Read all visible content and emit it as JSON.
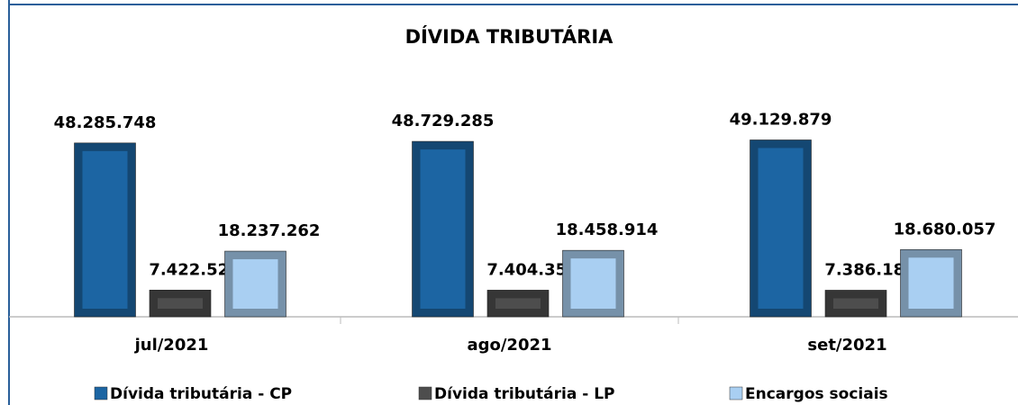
{
  "chart_data": {
    "type": "bar",
    "title": "DÍVIDA TRIBUTÁRIA",
    "categories": [
      "jul/2021",
      "ago/2021",
      "set/2021"
    ],
    "series": [
      {
        "name": "Dívida tributária - CP",
        "color": "#1c65a3",
        "values": [
          48285748,
          48729285,
          49129879
        ],
        "value_labels": [
          "48.285.748",
          "48.729.285",
          "49.129.879"
        ]
      },
      {
        "name": "Dívida tributária - LP",
        "color": "#4d4d4d",
        "values": [
          7422520,
          7404354,
          7386188
        ],
        "value_labels": [
          "7.422.520",
          "7.404.354",
          "7.386.188"
        ]
      },
      {
        "name": "Encargos sociais",
        "color": "#a9cff2",
        "values": [
          18237262,
          18458914,
          18680057
        ],
        "value_labels": [
          "18.237.262",
          "18.458.914",
          "18.680.057"
        ]
      }
    ],
    "ylim": [
      0,
      60000000
    ]
  }
}
